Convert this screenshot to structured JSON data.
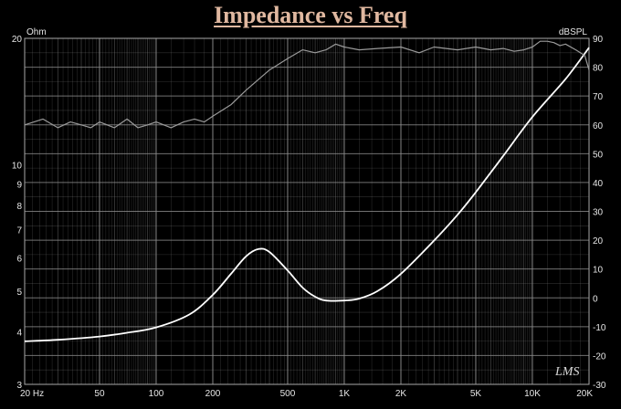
{
  "title": "Impedance vs Freq",
  "logo_text": "LMS",
  "colors": {
    "background": "#000000",
    "grid": "#8c8c8c",
    "impedance_curve": "#ffffff",
    "spl_curve": "#9a9a9a",
    "title": "#e0b8a0",
    "text": "#e6e6e6"
  },
  "chart_data": {
    "type": "line",
    "title": "Impedance vs Freq",
    "x_scale": "log",
    "xlim": [
      20,
      20000
    ],
    "x_ticks": [
      {
        "value": 20,
        "label": "20  Hz"
      },
      {
        "value": 50,
        "label": "50"
      },
      {
        "value": 100,
        "label": "100"
      },
      {
        "value": 200,
        "label": "200"
      },
      {
        "value": 500,
        "label": "500"
      },
      {
        "value": 1000,
        "label": "1K"
      },
      {
        "value": 2000,
        "label": "2K"
      },
      {
        "value": 5000,
        "label": "5K"
      },
      {
        "value": 10000,
        "label": "10K"
      },
      {
        "value": 20000,
        "label": "20K"
      }
    ],
    "y_left": {
      "unit": "Ohm",
      "scale": "log",
      "range": [
        3,
        20
      ],
      "ticks": [
        {
          "value": 20,
          "label": "20"
        },
        {
          "value": 10,
          "label": "10"
        },
        {
          "value": 9,
          "label": "9"
        },
        {
          "value": 8,
          "label": "8"
        },
        {
          "value": 7,
          "label": "7"
        },
        {
          "value": 6,
          "label": "6"
        },
        {
          "value": 5,
          "label": "5"
        },
        {
          "value": 4,
          "label": "4"
        },
        {
          "value": 3,
          "label": "3"
        }
      ]
    },
    "y_right": {
      "unit": "dBSPL",
      "scale": "linear",
      "range": [
        -30,
        90
      ],
      "ticks": [
        {
          "value": 90,
          "label": "90"
        },
        {
          "value": 80,
          "label": "80"
        },
        {
          "value": 70,
          "label": "70"
        },
        {
          "value": 60,
          "label": "60"
        },
        {
          "value": 50,
          "label": "50"
        },
        {
          "value": 40,
          "label": "40"
        },
        {
          "value": 30,
          "label": "30"
        },
        {
          "value": 20,
          "label": "20"
        },
        {
          "value": 10,
          "label": "10"
        },
        {
          "value": 0,
          "label": "0"
        },
        {
          "value": -10,
          "label": "-10"
        },
        {
          "value": -20,
          "label": "-20"
        },
        {
          "value": -30,
          "label": "-30"
        }
      ]
    },
    "grid": true,
    "series": [
      {
        "axis": "left",
        "x": [
          20,
          30,
          50,
          70,
          100,
          150,
          200,
          250,
          300,
          350,
          400,
          500,
          600,
          700,
          800,
          1000,
          1200,
          1500,
          2000,
          3000,
          4000,
          5000,
          7000,
          10000,
          15000,
          20000
        ],
        "y": [
          3.8,
          3.83,
          3.9,
          3.98,
          4.1,
          4.4,
          4.9,
          5.5,
          6.05,
          6.3,
          6.2,
          5.6,
          5.1,
          4.85,
          4.75,
          4.75,
          4.8,
          5.0,
          5.5,
          6.6,
          7.6,
          8.6,
          10.5,
          13.0,
          16.0,
          19.0
        ]
      },
      {
        "axis": "right",
        "x": [
          20,
          25,
          30,
          35,
          40,
          45,
          50,
          60,
          70,
          80,
          90,
          100,
          120,
          140,
          160,
          180,
          200,
          250,
          300,
          400,
          500,
          600,
          700,
          800,
          900,
          1000,
          1200,
          1500,
          2000,
          2500,
          3000,
          4000,
          5000,
          6000,
          7000,
          8000,
          9000,
          10000,
          11000,
          12000,
          13000,
          14000,
          15000,
          17000,
          19000,
          20000
        ],
        "y": [
          60,
          62,
          59,
          61,
          60,
          59,
          61,
          59,
          62,
          59,
          60,
          61,
          59,
          61,
          62,
          61,
          63,
          67,
          72,
          79,
          83,
          86,
          85,
          86,
          88,
          87,
          86,
          86.5,
          87,
          85,
          87,
          86,
          87,
          86,
          86.5,
          85.5,
          86,
          87,
          89,
          89,
          88.5,
          87.5,
          88,
          86,
          84,
          79
        ]
      }
    ]
  }
}
